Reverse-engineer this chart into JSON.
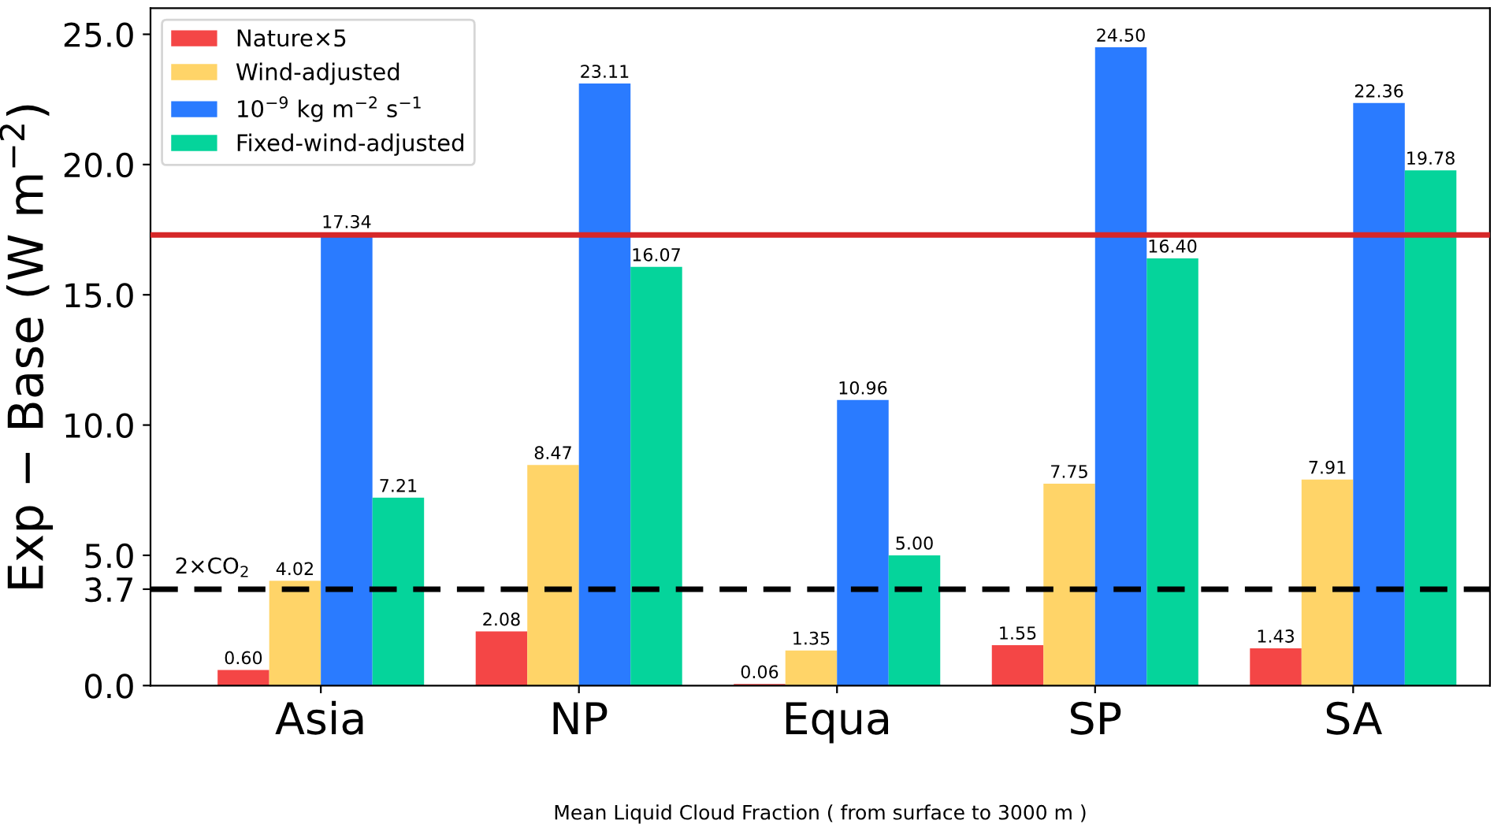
{
  "chart_data": {
    "type": "bar",
    "xlabel": "Mean Liquid Cloud Fraction ( from surface to 3000 m )",
    "ylabel": "Exp − Base (W m$^{−2}$)",
    "categories": [
      "Asia",
      "NP",
      "Equa",
      "SP",
      "SA"
    ],
    "series": [
      {
        "name": "Nature×5",
        "color": "#f44646",
        "values": [
          0.6,
          2.08,
          0.06,
          1.55,
          1.43
        ],
        "value_labels": [
          "0.60",
          "2.08",
          "0.06",
          "1.55",
          "1.43"
        ]
      },
      {
        "name": "Wind-adjusted",
        "color": "#ffd468",
        "values": [
          4.02,
          8.47,
          1.35,
          7.75,
          7.91
        ],
        "value_labels": [
          "4.02",
          "8.47",
          "1.35",
          "7.75",
          "7.91"
        ]
      },
      {
        "name": "10$^{−9}$ kg m$^{−2}$ s$^{−1}$",
        "color": "#2a7bff",
        "values": [
          17.34,
          23.11,
          10.96,
          24.5,
          22.36
        ],
        "value_labels": [
          "17.34",
          "23.11",
          "10.96",
          "24.50",
          "22.36"
        ]
      },
      {
        "name": "Fixed-wind-adjusted",
        "color": "#05d49b",
        "values": [
          7.21,
          16.07,
          5.0,
          16.4,
          19.78
        ],
        "value_labels": [
          "7.21",
          "16.07",
          "5.00",
          "16.40",
          "19.78"
        ]
      }
    ],
    "ylim": [
      0,
      26
    ],
    "yticks": [
      {
        "value": 0,
        "label": "0.0"
      },
      {
        "value": 3.7,
        "label": "3.7"
      },
      {
        "value": 5,
        "label": "5.0"
      },
      {
        "value": 10,
        "label": "10.0"
      },
      {
        "value": 15,
        "label": "15.0"
      },
      {
        "value": 20,
        "label": "20.0"
      },
      {
        "value": 25,
        "label": "25.0"
      }
    ],
    "ref_lines": [
      {
        "axis": "y",
        "value": 3.7,
        "label": "2×CO$_{2}$",
        "color": "#000000",
        "line_style": "dashed"
      },
      {
        "axis": "y",
        "value": 17.3,
        "label": null,
        "color": "#d62728",
        "line_style": "solid"
      }
    ],
    "legend": "top left",
    "grid": false
  }
}
